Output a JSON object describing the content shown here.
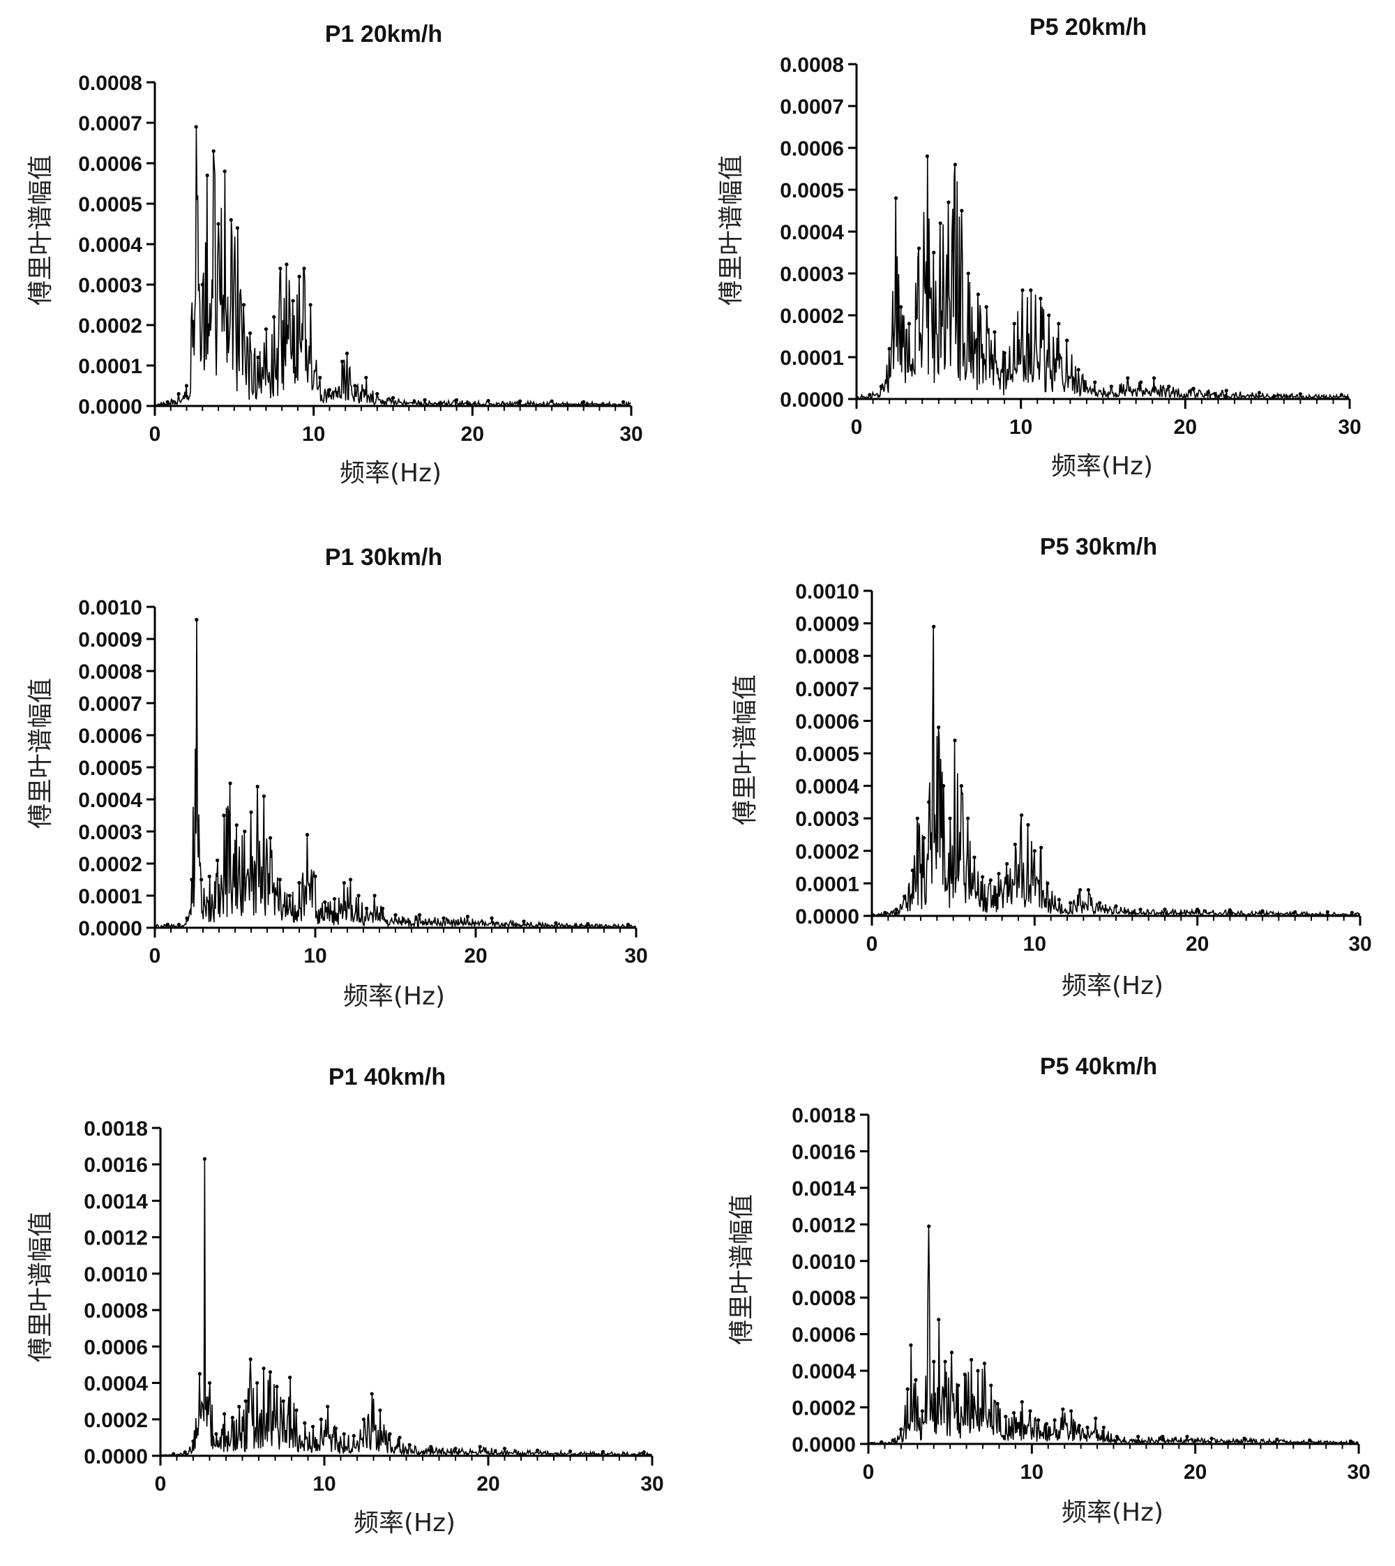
{
  "figure": {
    "xlabel": "频率(Hz)",
    "ylabel": "傅里叶谱幅值",
    "x_ticks": [
      "0",
      "10",
      "20",
      "30"
    ]
  },
  "chart_data": [
    {
      "type": "line",
      "title": "P1 20km/h",
      "xlabel": "频率(Hz)",
      "ylabel": "傅里叶谱幅值",
      "xlim": [
        0,
        30
      ],
      "ylim": [
        0,
        0.0008
      ],
      "y_ticks": [
        "0.0000",
        "0.0001",
        "0.0002",
        "0.0003",
        "0.0004",
        "0.0005",
        "0.0006",
        "0.0007",
        "0.0008"
      ],
      "peaks": [
        [
          0.8,
          1e-05
        ],
        [
          1.5,
          3e-05
        ],
        [
          2.0,
          5e-05
        ],
        [
          2.6,
          0.00069
        ],
        [
          3.0,
          0.0003
        ],
        [
          3.3,
          0.00057
        ],
        [
          3.7,
          0.00063
        ],
        [
          4.0,
          0.00045
        ],
        [
          4.4,
          0.00058
        ],
        [
          4.8,
          0.00046
        ],
        [
          5.2,
          0.00044
        ],
        [
          5.6,
          0.00025
        ],
        [
          6.0,
          0.00018
        ],
        [
          6.5,
          0.00012
        ],
        [
          7.0,
          0.00019
        ],
        [
          7.5,
          0.00022
        ],
        [
          7.9,
          0.00034
        ],
        [
          8.3,
          0.00035
        ],
        [
          8.7,
          0.00026
        ],
        [
          9.1,
          0.00032
        ],
        [
          9.4,
          0.00034
        ],
        [
          9.8,
          0.00025
        ],
        [
          10.4,
          7e-05
        ],
        [
          11.0,
          4e-05
        ],
        [
          11.8,
          0.00011
        ],
        [
          12.1,
          0.00013
        ],
        [
          12.6,
          5e-05
        ],
        [
          13.3,
          7e-05
        ],
        [
          14.0,
          3e-05
        ],
        [
          15.0,
          2e-05
        ],
        [
          17.0,
          1.5e-05
        ],
        [
          19.0,
          1.5e-05
        ],
        [
          21.0,
          1.3e-05
        ],
        [
          23.0,
          1.2e-05
        ],
        [
          25.0,
          1.2e-05
        ],
        [
          27.0,
          1e-05
        ],
        [
          29.5,
          1e-05
        ]
      ]
    },
    {
      "type": "line",
      "title": "P5 20km/h",
      "xlabel": "频率(Hz)",
      "ylabel": "傅里叶谱幅值",
      "xlim": [
        0,
        30
      ],
      "ylim": [
        0,
        0.0008
      ],
      "y_ticks": [
        "0.0000",
        "0.0001",
        "0.0002",
        "0.0003",
        "0.0004",
        "0.0005",
        "0.0006",
        "0.0007",
        "0.0008"
      ],
      "peaks": [
        [
          0.8,
          1e-05
        ],
        [
          1.5,
          3e-05
        ],
        [
          2.0,
          0.00012
        ],
        [
          2.4,
          0.00048
        ],
        [
          2.7,
          0.00022
        ],
        [
          3.2,
          0.00018
        ],
        [
          3.8,
          0.00036
        ],
        [
          4.3,
          0.00058
        ],
        [
          4.7,
          0.00035
        ],
        [
          5.1,
          0.00042
        ],
        [
          5.6,
          0.00047
        ],
        [
          6.0,
          0.00056
        ],
        [
          6.4,
          0.00045
        ],
        [
          6.8,
          0.0003
        ],
        [
          7.4,
          0.00025
        ],
        [
          7.9,
          0.00022
        ],
        [
          8.4,
          0.00016
        ],
        [
          9.0,
          0.00011
        ],
        [
          9.6,
          0.00018
        ],
        [
          10.1,
          0.00026
        ],
        [
          10.6,
          0.00026
        ],
        [
          11.2,
          0.00024
        ],
        [
          11.7,
          0.0002
        ],
        [
          12.3,
          0.00018
        ],
        [
          12.8,
          0.00014
        ],
        [
          13.5,
          7e-05
        ],
        [
          14.5,
          4e-05
        ],
        [
          15.5,
          3e-05
        ],
        [
          16.5,
          5e-05
        ],
        [
          17.3,
          4e-05
        ],
        [
          18.1,
          5e-05
        ],
        [
          19.0,
          3e-05
        ],
        [
          20.5,
          2.5e-05
        ],
        [
          22.5,
          2e-05
        ],
        [
          24.5,
          1.5e-05
        ],
        [
          27.0,
          1.2e-05
        ],
        [
          29.5,
          1e-05
        ]
      ]
    },
    {
      "type": "line",
      "title": "P1 30km/h",
      "xlabel": "频率(Hz)",
      "ylabel": "傅里叶谱幅值",
      "xlim": [
        0,
        30
      ],
      "ylim": [
        0,
        0.001
      ],
      "y_ticks": [
        "0.0000",
        "0.0001",
        "0.0002",
        "0.0003",
        "0.0004",
        "0.0005",
        "0.0006",
        "0.0007",
        "0.0008",
        "0.0009",
        "0.0010"
      ],
      "peaks": [
        [
          0.8,
          1e-05
        ],
        [
          1.5,
          1e-05
        ],
        [
          2.0,
          3e-05
        ],
        [
          2.3,
          0.00015
        ],
        [
          2.6,
          0.00096
        ],
        [
          2.9,
          0.00015
        ],
        [
          3.4,
          0.00016
        ],
        [
          3.9,
          0.00021
        ],
        [
          4.3,
          0.00035
        ],
        [
          4.7,
          0.00045
        ],
        [
          5.1,
          0.00032
        ],
        [
          5.6,
          0.0003
        ],
        [
          6.0,
          0.00036
        ],
        [
          6.4,
          0.00044
        ],
        [
          6.8,
          0.00041
        ],
        [
          7.2,
          0.00028
        ],
        [
          7.8,
          0.00015
        ],
        [
          8.4,
          0.0001
        ],
        [
          9.0,
          0.00014
        ],
        [
          9.5,
          0.00029
        ],
        [
          10.0,
          0.00016
        ],
        [
          10.6,
          8e-05
        ],
        [
          11.2,
          9e-05
        ],
        [
          11.8,
          0.00014
        ],
        [
          12.2,
          0.00015
        ],
        [
          12.7,
          0.0001
        ],
        [
          13.2,
          6e-05
        ],
        [
          13.7,
          0.0001
        ],
        [
          14.2,
          6e-05
        ],
        [
          15.0,
          4e-05
        ],
        [
          16.5,
          4e-05
        ],
        [
          18.0,
          3e-05
        ],
        [
          19.5,
          3.5e-05
        ],
        [
          21.0,
          3e-05
        ],
        [
          23.0,
          2e-05
        ],
        [
          25.0,
          1.5e-05
        ],
        [
          27.0,
          1.2e-05
        ],
        [
          29.5,
          1e-05
        ]
      ]
    },
    {
      "type": "line",
      "title": "P5 30km/h",
      "xlabel": "频率(Hz)",
      "ylabel": "傅里叶谱幅值",
      "xlim": [
        0,
        30
      ],
      "ylim": [
        0,
        0.001
      ],
      "y_ticks": [
        "0.0000",
        "0.0001",
        "0.0002",
        "0.0003",
        "0.0004",
        "0.0005",
        "0.0006",
        "0.0007",
        "0.0008",
        "0.0009",
        "0.0010"
      ],
      "peaks": [
        [
          0.8,
          1e-05
        ],
        [
          1.5,
          2e-05
        ],
        [
          2.0,
          6e-05
        ],
        [
          2.5,
          0.00014
        ],
        [
          2.8,
          0.0003
        ],
        [
          3.2,
          0.00024
        ],
        [
          3.5,
          0.00035
        ],
        [
          3.8,
          0.00089
        ],
        [
          4.1,
          0.00058
        ],
        [
          4.4,
          0.0004
        ],
        [
          4.8,
          0.0003
        ],
        [
          5.1,
          0.00054
        ],
        [
          5.5,
          0.0004
        ],
        [
          5.9,
          0.0003
        ],
        [
          6.3,
          0.00018
        ],
        [
          6.8,
          0.00012
        ],
        [
          7.3,
          0.00011
        ],
        [
          7.8,
          0.00013
        ],
        [
          8.3,
          0.00016
        ],
        [
          8.8,
          0.00022
        ],
        [
          9.2,
          0.00031
        ],
        [
          9.6,
          0.00028
        ],
        [
          10.0,
          0.0002
        ],
        [
          10.4,
          0.00021
        ],
        [
          10.8,
          0.0001
        ],
        [
          11.5,
          5e-05
        ],
        [
          12.2,
          4e-05
        ],
        [
          12.8,
          8e-05
        ],
        [
          13.3,
          8e-05
        ],
        [
          14.0,
          4e-05
        ],
        [
          15.0,
          3e-05
        ],
        [
          16.5,
          2e-05
        ],
        [
          18.0,
          2e-05
        ],
        [
          20.0,
          2e-05
        ],
        [
          22.0,
          1.8e-05
        ],
        [
          24.0,
          1.5e-05
        ],
        [
          26.0,
          1.2e-05
        ],
        [
          28.0,
          1.2e-05
        ],
        [
          29.5,
          1e-05
        ]
      ]
    },
    {
      "type": "line",
      "title": "P1 40km/h",
      "xlabel": "频率(Hz)",
      "ylabel": "傅里叶谱幅值",
      "xlim": [
        0,
        30
      ],
      "ylim": [
        0,
        0.0018
      ],
      "y_ticks": [
        "0.0000",
        "0.0002",
        "0.0004",
        "0.0006",
        "0.0008",
        "0.0010",
        "0.0012",
        "0.0014",
        "0.0016",
        "0.0018"
      ],
      "peaks": [
        [
          0.8,
          1e-05
        ],
        [
          1.5,
          2e-05
        ],
        [
          2.0,
          8e-05
        ],
        [
          2.4,
          0.00045
        ],
        [
          2.7,
          0.00163
        ],
        [
          3.0,
          0.0004
        ],
        [
          3.4,
          0.00012
        ],
        [
          3.9,
          0.00023
        ],
        [
          4.4,
          0.00021
        ],
        [
          4.8,
          0.00027
        ],
        [
          5.2,
          0.0003
        ],
        [
          5.5,
          0.00053
        ],
        [
          5.9,
          0.0004
        ],
        [
          6.3,
          0.00048
        ],
        [
          6.7,
          0.00046
        ],
        [
          7.1,
          0.00038
        ],
        [
          7.5,
          0.0003
        ],
        [
          7.9,
          0.00043
        ],
        [
          8.3,
          0.00025
        ],
        [
          8.8,
          0.00018
        ],
        [
          9.3,
          0.00016
        ],
        [
          9.8,
          0.0002
        ],
        [
          10.2,
          0.00027
        ],
        [
          10.7,
          0.00015
        ],
        [
          11.2,
          0.00012
        ],
        [
          11.8,
          0.00011
        ],
        [
          12.4,
          0.0002
        ],
        [
          12.9,
          0.00034
        ],
        [
          13.4,
          0.00025
        ],
        [
          14.0,
          0.00012
        ],
        [
          14.6,
          0.0001
        ],
        [
          15.2,
          6e-05
        ],
        [
          16.5,
          5e-05
        ],
        [
          18.0,
          4e-05
        ],
        [
          19.5,
          5e-05
        ],
        [
          21.0,
          4e-05
        ],
        [
          23.0,
          3e-05
        ],
        [
          25.0,
          2.5e-05
        ],
        [
          27.0,
          2.2e-05
        ],
        [
          29.5,
          2e-05
        ]
      ]
    },
    {
      "type": "line",
      "title": "P5 40km/h",
      "xlabel": "频率(Hz)",
      "ylabel": "傅里叶谱幅值",
      "xlim": [
        0,
        30
      ],
      "ylim": [
        0,
        0.0018
      ],
      "y_ticks": [
        "0.0000",
        "0.0002",
        "0.0004",
        "0.0006",
        "0.0008",
        "0.0010",
        "0.0012",
        "0.0014",
        "0.0016",
        "0.0018"
      ],
      "peaks": [
        [
          0.8,
          1e-05
        ],
        [
          1.5,
          2e-05
        ],
        [
          2.0,
          8e-05
        ],
        [
          2.4,
          0.0003
        ],
        [
          2.6,
          0.00054
        ],
        [
          2.9,
          0.00035
        ],
        [
          3.3,
          0.00018
        ],
        [
          3.7,
          0.00119
        ],
        [
          4.0,
          0.00045
        ],
        [
          4.3,
          0.00068
        ],
        [
          4.7,
          0.00045
        ],
        [
          5.1,
          0.0005
        ],
        [
          5.5,
          0.00032
        ],
        [
          5.9,
          0.00038
        ],
        [
          6.3,
          0.00046
        ],
        [
          6.7,
          0.0004
        ],
        [
          7.1,
          0.00044
        ],
        [
          7.5,
          0.00032
        ],
        [
          7.9,
          0.00022
        ],
        [
          8.4,
          0.00015
        ],
        [
          8.9,
          0.00017
        ],
        [
          9.4,
          0.00023
        ],
        [
          9.9,
          0.00018
        ],
        [
          10.4,
          0.00013
        ],
        [
          10.9,
          0.00011
        ],
        [
          11.4,
          0.00013
        ],
        [
          11.9,
          0.00019
        ],
        [
          12.4,
          0.00018
        ],
        [
          12.9,
          0.0001
        ],
        [
          13.4,
          9e-05
        ],
        [
          13.9,
          0.00014
        ],
        [
          14.4,
          9e-05
        ],
        [
          15.2,
          4e-05
        ],
        [
          16.5,
          4e-05
        ],
        [
          18.0,
          4e-05
        ],
        [
          19.5,
          4e-05
        ],
        [
          21.0,
          3e-05
        ],
        [
          23.0,
          3e-05
        ],
        [
          25.0,
          2.5e-05
        ],
        [
          27.0,
          2e-05
        ],
        [
          29.5,
          1.5e-05
        ]
      ]
    }
  ]
}
